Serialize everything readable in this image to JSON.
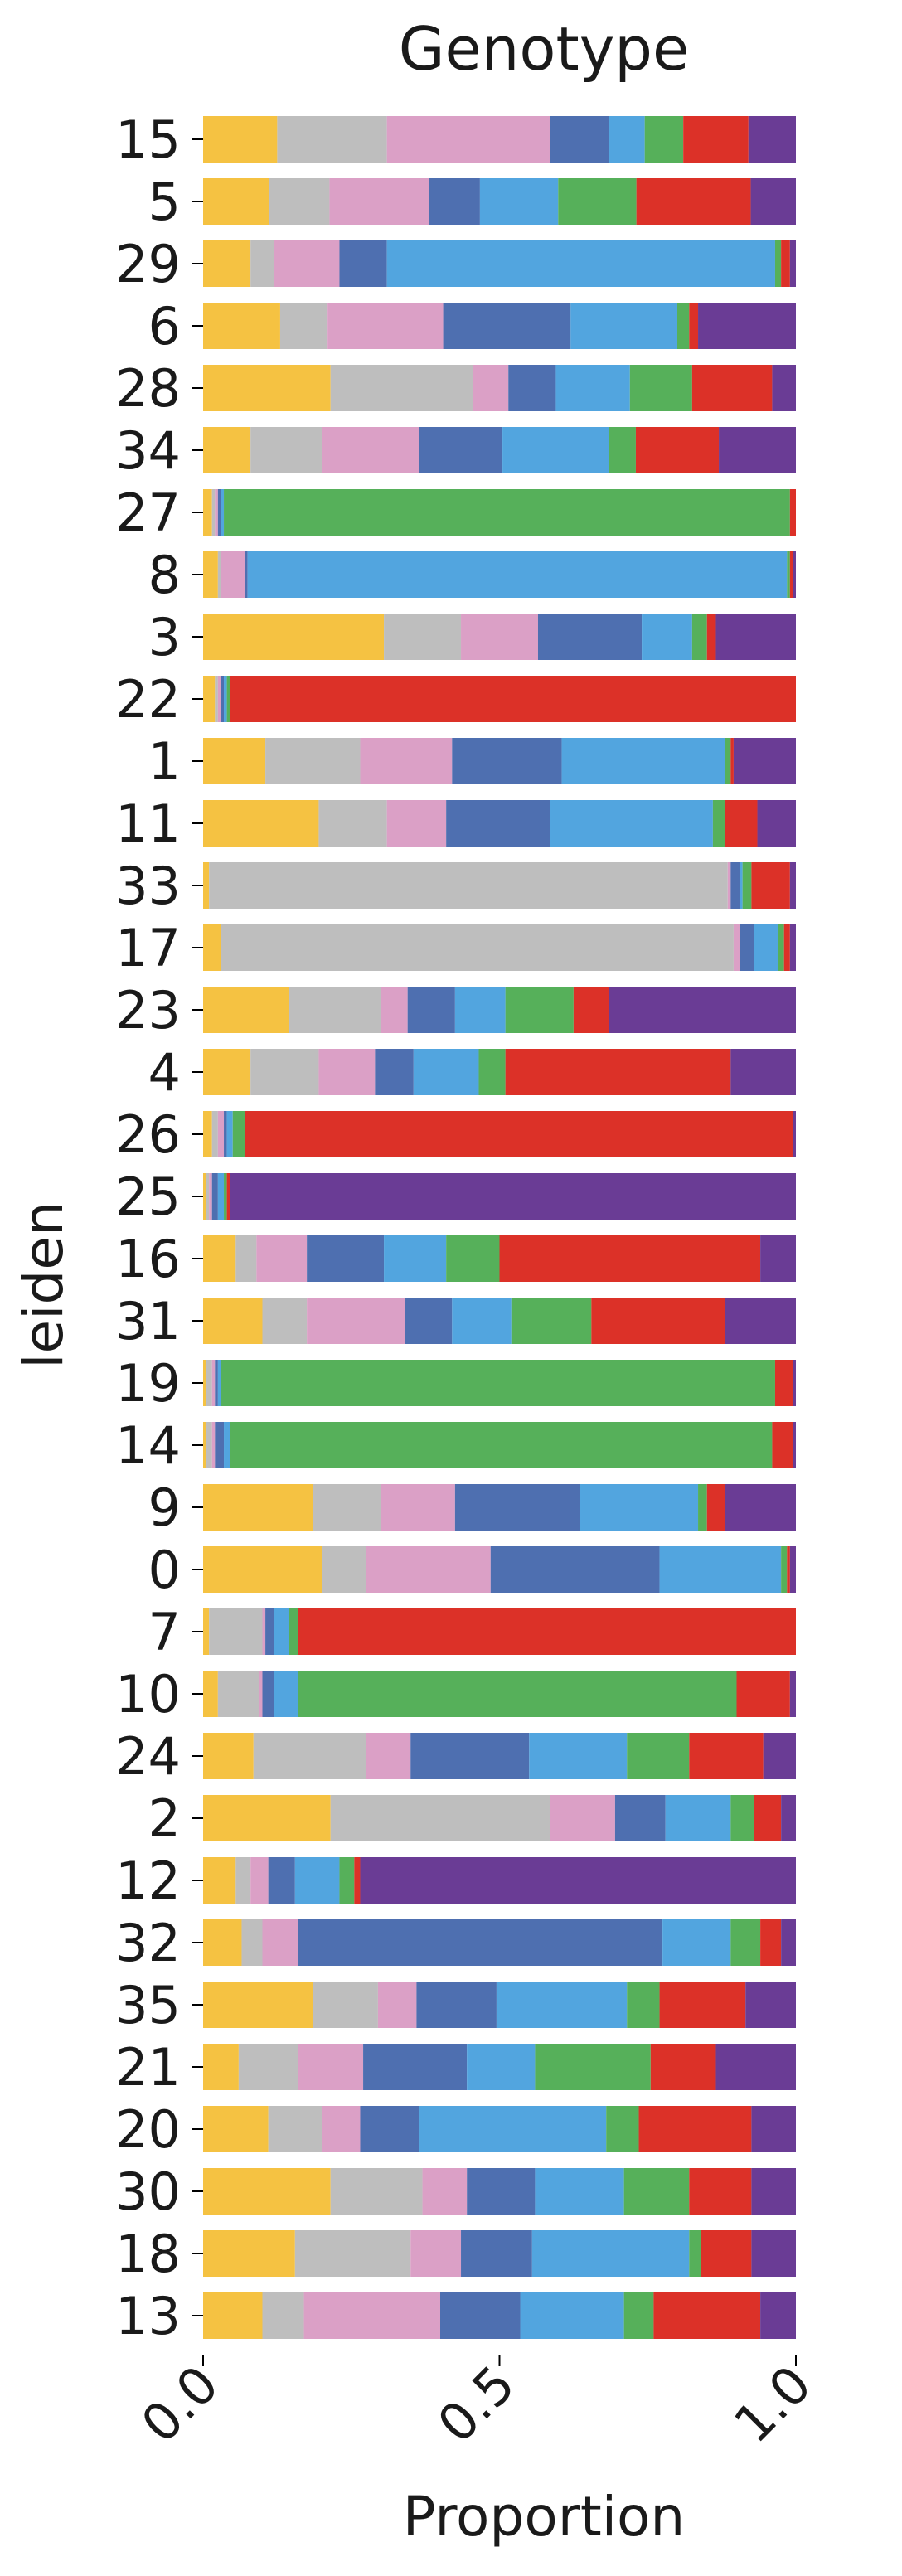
{
  "chart_data": {
    "type": "bar",
    "orientation": "horizontal",
    "stacked": true,
    "title": "Genotype",
    "xlabel": "Proportion",
    "ylabel": "leiden",
    "xlim": [
      0,
      1
    ],
    "xticks": [
      "0.0",
      "0.5",
      "1.0"
    ],
    "grid": false,
    "legend": "none",
    "colors": [
      "#F5C242",
      "#BEBEBE",
      "#DBA0C6",
      "#4E6FB0",
      "#52A5DF",
      "#56B05A",
      "#DC3128",
      "#6A3C95"
    ],
    "categories": [
      "15",
      "5",
      "29",
      "6",
      "28",
      "34",
      "27",
      "8",
      "3",
      "22",
      "1",
      "11",
      "33",
      "17",
      "23",
      "4",
      "26",
      "25",
      "16",
      "31",
      "19",
      "14",
      "9",
      "0",
      "7",
      "10",
      "24",
      "2",
      "12",
      "32",
      "35",
      "21",
      "20",
      "30",
      "18",
      "13"
    ],
    "rows": [
      [
        0.125,
        0.185,
        0.275,
        0.1,
        0.06,
        0.065,
        0.11,
        0.08
      ],
      [
        0.11,
        0.1,
        0.165,
        0.085,
        0.13,
        0.13,
        0.19,
        0.075
      ],
      [
        0.08,
        0.04,
        0.11,
        0.08,
        0.655,
        0.01,
        0.015,
        0.01
      ],
      [
        0.13,
        0.08,
        0.195,
        0.215,
        0.18,
        0.02,
        0.015,
        0.165
      ],
      [
        0.215,
        0.24,
        0.06,
        0.08,
        0.125,
        0.105,
        0.135,
        0.04
      ],
      [
        0.08,
        0.12,
        0.165,
        0.14,
        0.18,
        0.045,
        0.14,
        0.13
      ],
      [
        0.015,
        0.005,
        0.005,
        0.005,
        0.005,
        0.955,
        0.01,
        0.0
      ],
      [
        0.025,
        0.005,
        0.04,
        0.005,
        0.91,
        0.005,
        0.005,
        0.005
      ],
      [
        0.305,
        0.13,
        0.13,
        0.175,
        0.085,
        0.025,
        0.015,
        0.135
      ],
      [
        0.02,
        0.005,
        0.005,
        0.005,
        0.005,
        0.005,
        0.955,
        0.0
      ],
      [
        0.105,
        0.16,
        0.155,
        0.185,
        0.275,
        0.01,
        0.005,
        0.105
      ],
      [
        0.195,
        0.115,
        0.1,
        0.175,
        0.275,
        0.02,
        0.055,
        0.065
      ],
      [
        0.01,
        0.875,
        0.005,
        0.015,
        0.005,
        0.015,
        0.065,
        0.01
      ],
      [
        0.03,
        0.865,
        0.01,
        0.025,
        0.04,
        0.01,
        0.01,
        0.01
      ],
      [
        0.145,
        0.155,
        0.045,
        0.08,
        0.085,
        0.115,
        0.06,
        0.315
      ],
      [
        0.08,
        0.115,
        0.095,
        0.065,
        0.11,
        0.045,
        0.38,
        0.11
      ],
      [
        0.015,
        0.01,
        0.01,
        0.005,
        0.01,
        0.02,
        0.925,
        0.005
      ],
      [
        0.005,
        0.005,
        0.005,
        0.01,
        0.01,
        0.005,
        0.005,
        0.955
      ],
      [
        0.055,
        0.035,
        0.085,
        0.13,
        0.105,
        0.09,
        0.44,
        0.06
      ],
      [
        0.1,
        0.075,
        0.165,
        0.08,
        0.1,
        0.135,
        0.225,
        0.12
      ],
      [
        0.005,
        0.01,
        0.005,
        0.005,
        0.005,
        0.935,
        0.03,
        0.005
      ],
      [
        0.005,
        0.01,
        0.005,
        0.015,
        0.01,
        0.915,
        0.035,
        0.005
      ],
      [
        0.185,
        0.115,
        0.125,
        0.21,
        0.2,
        0.015,
        0.03,
        0.12
      ],
      [
        0.2,
        0.075,
        0.21,
        0.285,
        0.205,
        0.01,
        0.005,
        0.01
      ],
      [
        0.01,
        0.09,
        0.005,
        0.015,
        0.025,
        0.015,
        0.84,
        0.0
      ],
      [
        0.025,
        0.07,
        0.005,
        0.02,
        0.04,
        0.74,
        0.09,
        0.01
      ],
      [
        0.085,
        0.19,
        0.075,
        0.2,
        0.165,
        0.105,
        0.125,
        0.055
      ],
      [
        0.215,
        0.37,
        0.11,
        0.085,
        0.11,
        0.04,
        0.045,
        0.025
      ],
      [
        0.055,
        0.025,
        0.03,
        0.045,
        0.075,
        0.025,
        0.01,
        0.735
      ],
      [
        0.065,
        0.035,
        0.06,
        0.615,
        0.115,
        0.05,
        0.035,
        0.025
      ],
      [
        0.185,
        0.11,
        0.065,
        0.135,
        0.22,
        0.055,
        0.145,
        0.085
      ],
      [
        0.06,
        0.1,
        0.11,
        0.175,
        0.115,
        0.195,
        0.11,
        0.135
      ],
      [
        0.11,
        0.09,
        0.065,
        0.1,
        0.315,
        0.055,
        0.19,
        0.075
      ],
      [
        0.215,
        0.155,
        0.075,
        0.115,
        0.15,
        0.11,
        0.105,
        0.075
      ],
      [
        0.155,
        0.195,
        0.085,
        0.12,
        0.265,
        0.02,
        0.085,
        0.075
      ],
      [
        0.1,
        0.07,
        0.23,
        0.135,
        0.175,
        0.05,
        0.18,
        0.06
      ]
    ]
  }
}
